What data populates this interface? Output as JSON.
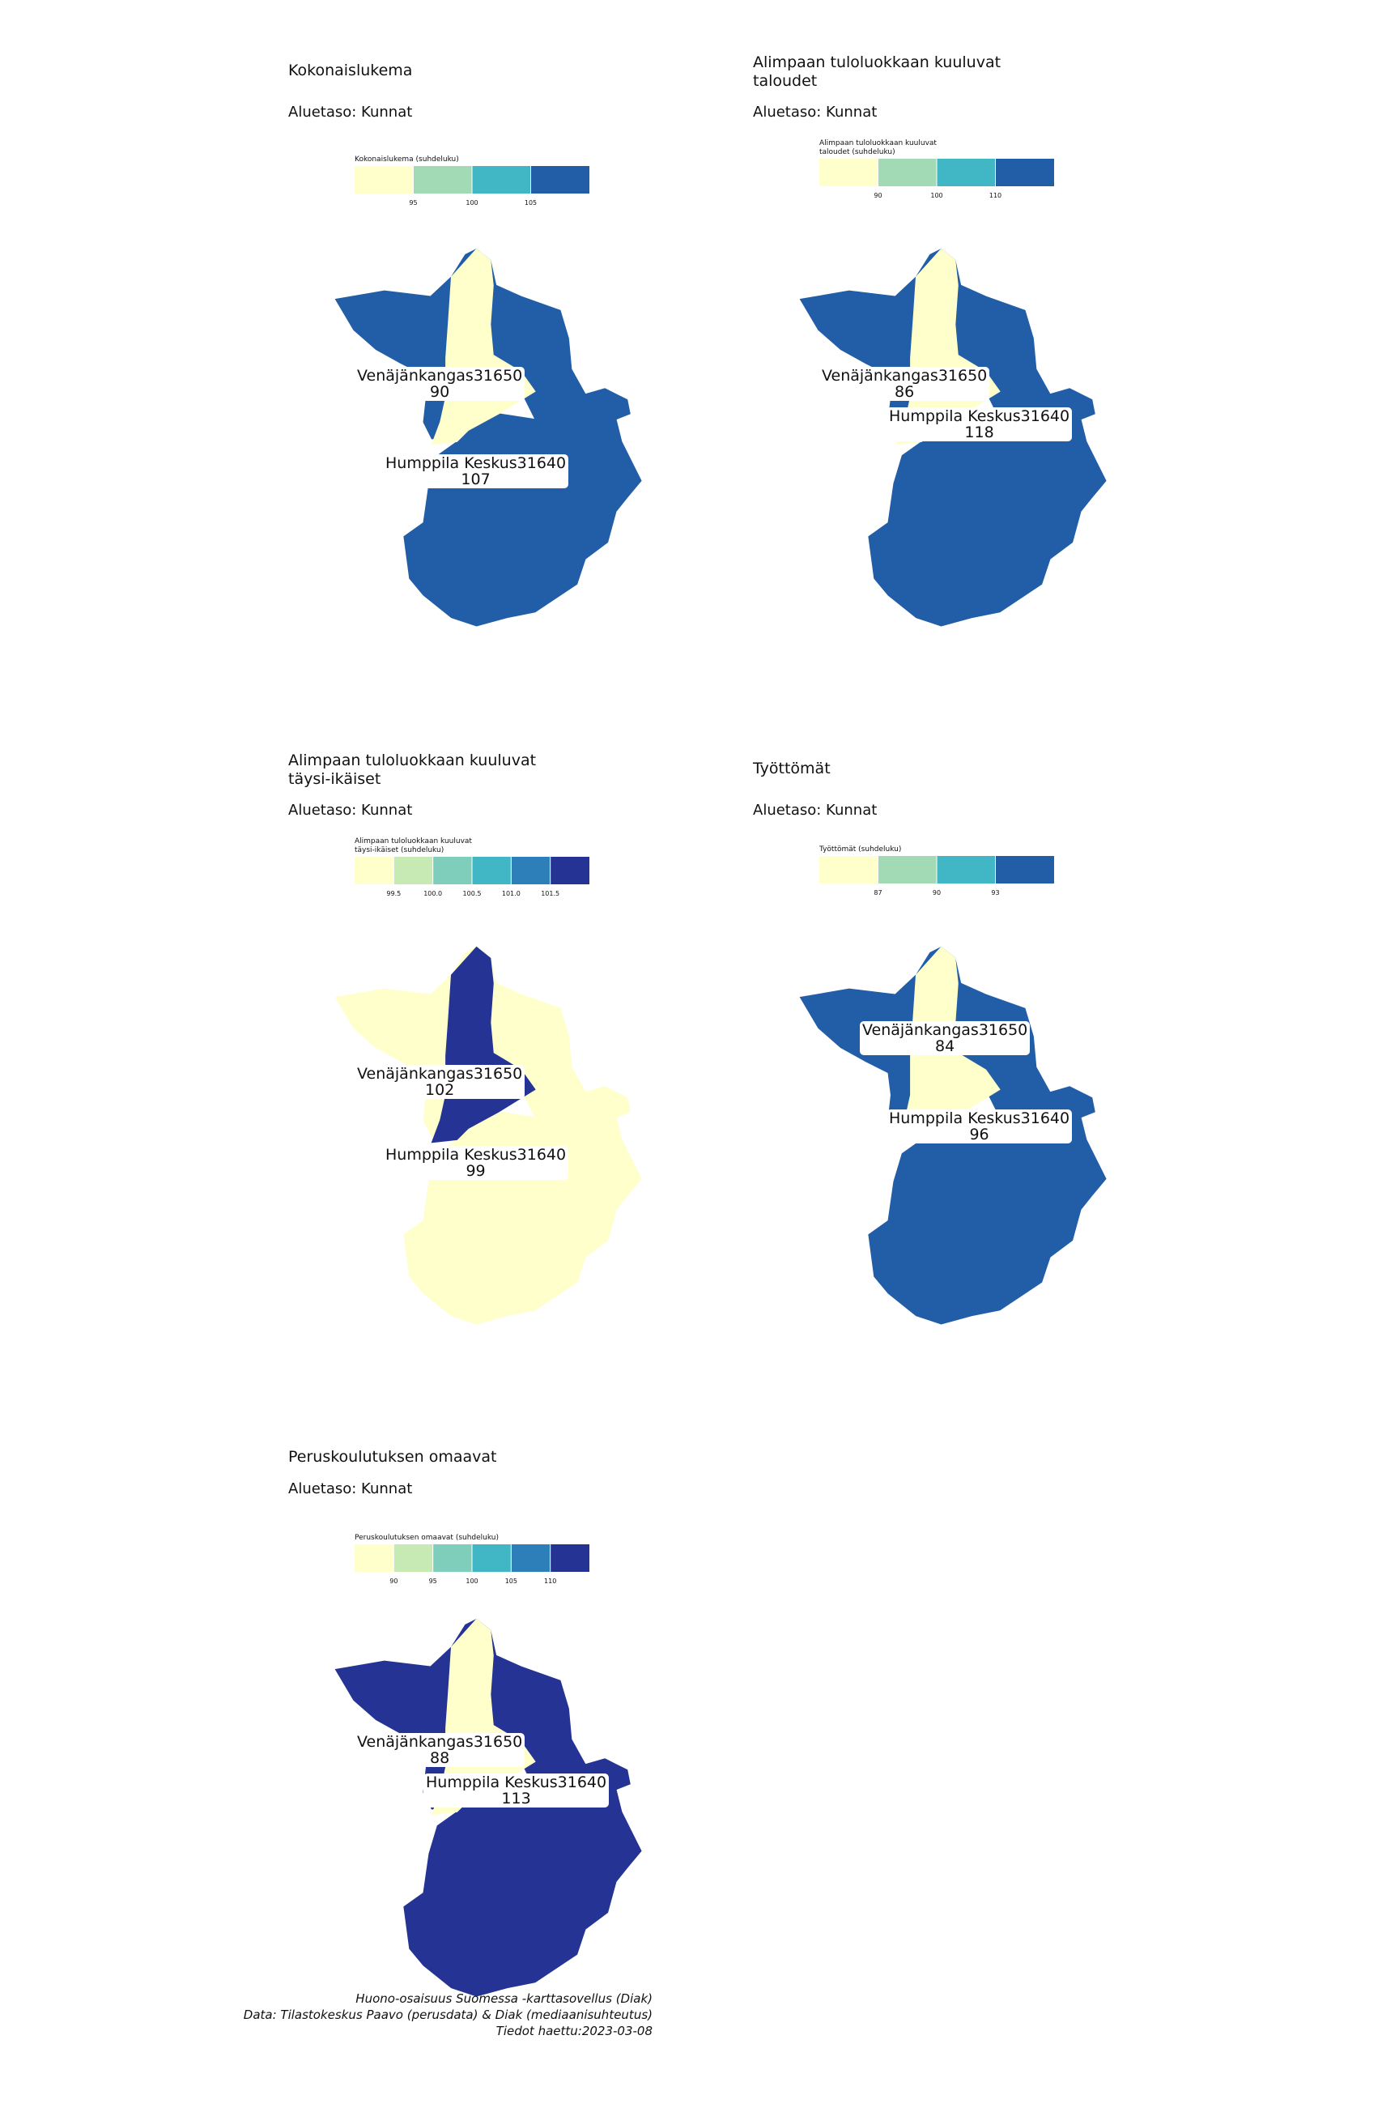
{
  "colors": {
    "c1": "#ffffcc",
    "c2": "#a1dab4",
    "c3": "#41b6c4",
    "c4": "#2c7fb8",
    "c5": "#253494",
    "c6_1": "#ffffcc",
    "c6_2": "#c7e9b4",
    "c6_3": "#7fcdbb",
    "c6_4": "#41b6c4",
    "c6_5": "#2c7fb8",
    "c6_6": "#253494",
    "blue4": "#225ea8"
  },
  "panels": [
    {
      "title": "Kokonaislukema",
      "subtitle": "Aluetaso: Kunnat",
      "legend_title": "Kokonaislukema (suhdeluku)",
      "legend_colors": [
        "#ffffcc",
        "#a1dab4",
        "#41b6c4",
        "#225ea8"
      ],
      "legend_ticks": [
        "95",
        "100",
        "105"
      ],
      "areas": {
        "north": "#ffffcc",
        "west": "#225ea8",
        "south": "#225ea8",
        "east": "#225ea8"
      },
      "labels": [
        {
          "name": "Venäjänkangas31650",
          "value": "90"
        },
        {
          "name": "Humppila Keskus31640",
          "value": "107"
        }
      ]
    },
    {
      "title": "Alimpaan tuloluokkaan kuuluvat\ntaloudet",
      "subtitle": "Aluetaso: Kunnat",
      "legend_title": "Alimpaan tuloluokkaan kuuluvat\ntaloudet (suhdeluku)",
      "legend_colors": [
        "#ffffcc",
        "#a1dab4",
        "#41b6c4",
        "#225ea8"
      ],
      "legend_ticks": [
        "90",
        "100",
        "110"
      ],
      "areas": {
        "north": "#ffffcc",
        "west": "#225ea8",
        "south": "#225ea8",
        "east": "#225ea8"
      },
      "labels": [
        {
          "name": "Venäjänkangas31650",
          "value": "86"
        },
        {
          "name": "Humppila Keskus31640",
          "value": "118"
        }
      ]
    },
    {
      "title": "Alimpaan tuloluokkaan kuuluvat\ntäysi-ikäiset",
      "subtitle": "Aluetaso: Kunnat",
      "legend_title": "Alimpaan tuloluokkaan kuuluvat\ntäysi-ikäiset (suhdeluku)",
      "legend_colors": [
        "#ffffcc",
        "#c7e9b4",
        "#7fcdbb",
        "#41b6c4",
        "#2c7fb8",
        "#253494"
      ],
      "legend_ticks": [
        "99.5",
        "100.0",
        "100.5",
        "101.0",
        "101.5"
      ],
      "areas": {
        "north": "#253494",
        "west": "#ffffcc",
        "south": "#ffffcc",
        "east": "#ffffcc"
      },
      "labels": [
        {
          "name": "Venäjänkangas31650",
          "value": "102"
        },
        {
          "name": "Humppila Keskus31640",
          "value": "99"
        }
      ]
    },
    {
      "title": "Työttömät",
      "subtitle": "Aluetaso: Kunnat",
      "legend_title": "Työttömät (suhdeluku)",
      "legend_colors": [
        "#ffffcc",
        "#a1dab4",
        "#41b6c4",
        "#225ea8"
      ],
      "legend_ticks": [
        "87",
        "90",
        "93"
      ],
      "areas": {
        "north": "#ffffcc",
        "west": "#225ea8",
        "south": "#225ea8",
        "east": "#225ea8"
      },
      "labels": [
        {
          "name": "Venäjänkangas31650",
          "value": "84"
        },
        {
          "name": "Humppila Keskus31640",
          "value": "96"
        }
      ]
    },
    {
      "title": "Peruskoulutuksen omaavat",
      "subtitle": "Aluetaso: Kunnat",
      "legend_title": "Peruskoulutuksen omaavat (suhdeluku)",
      "legend_colors": [
        "#ffffcc",
        "#c7e9b4",
        "#7fcdbb",
        "#41b6c4",
        "#2c7fb8",
        "#253494"
      ],
      "legend_ticks": [
        "90",
        "95",
        "100",
        "105",
        "110"
      ],
      "areas": {
        "north": "#ffffcc",
        "west": "#253494",
        "south": "#253494",
        "east": "#253494"
      },
      "labels": [
        {
          "name": "Venäjänkangas31650",
          "value": "88"
        },
        {
          "name": "Humppila Keskus31640",
          "value": "113"
        }
      ]
    }
  ],
  "footer": {
    "line1": "Huono-osaisuus Suomessa -karttasovellus (Diak)",
    "line2": "Data: Tilastokeskus Paavo (perusdata) & Diak (mediaanisuhteutus)",
    "line3": "Tiedot haettu:2023-03-08"
  }
}
